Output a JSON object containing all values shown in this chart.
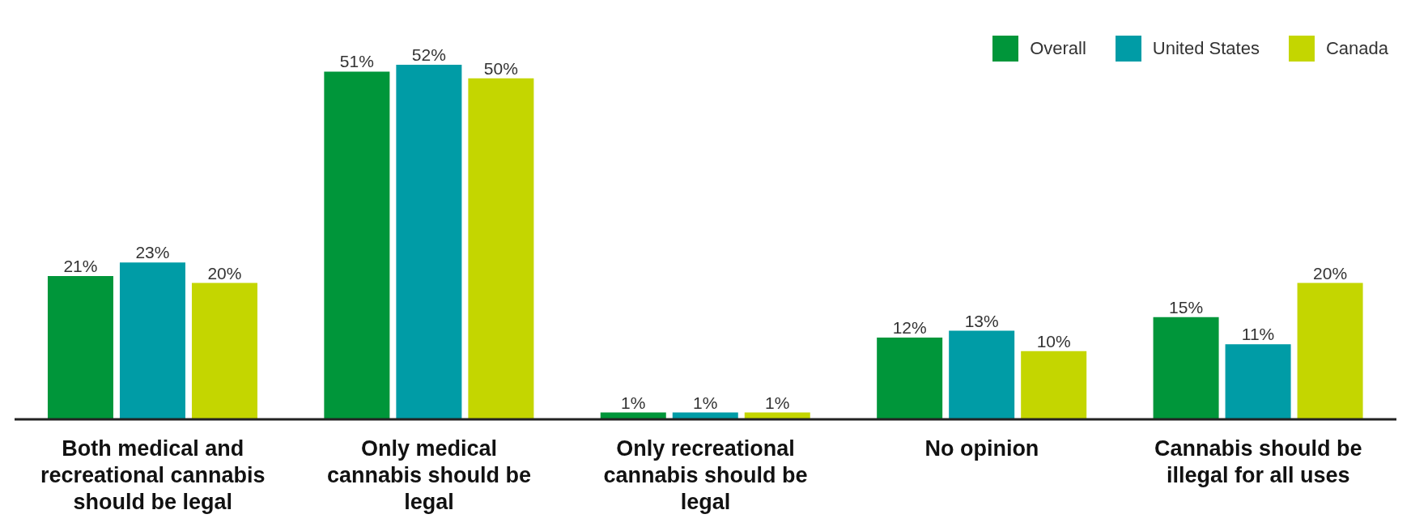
{
  "chart_data": {
    "type": "bar",
    "categories": [
      "Both medical and recreational cannabis should be legal",
      "Only medical cannabis should be legal",
      "Only recreational cannabis should be legal",
      "No opinion",
      "Cannabis should be illegal for all uses"
    ],
    "series": [
      {
        "name": "Overall",
        "color": "#00963a",
        "values": [
          21,
          51,
          1,
          12,
          15
        ],
        "value_labels": [
          "21%",
          "51%",
          "1%",
          "12%",
          "15%"
        ]
      },
      {
        "name": "United States",
        "color": "#009ca6",
        "values": [
          23,
          52,
          1,
          13,
          11
        ],
        "value_labels": [
          "23%",
          "52%",
          "1%",
          "13%",
          "11%"
        ]
      },
      {
        "name": "Canada",
        "color": "#c4d600",
        "values": [
          20,
          50,
          1,
          10,
          20
        ],
        "value_labels": [
          "20%",
          "50%",
          "1%",
          "10%",
          "20%"
        ]
      }
    ],
    "legend": "top right"
  }
}
